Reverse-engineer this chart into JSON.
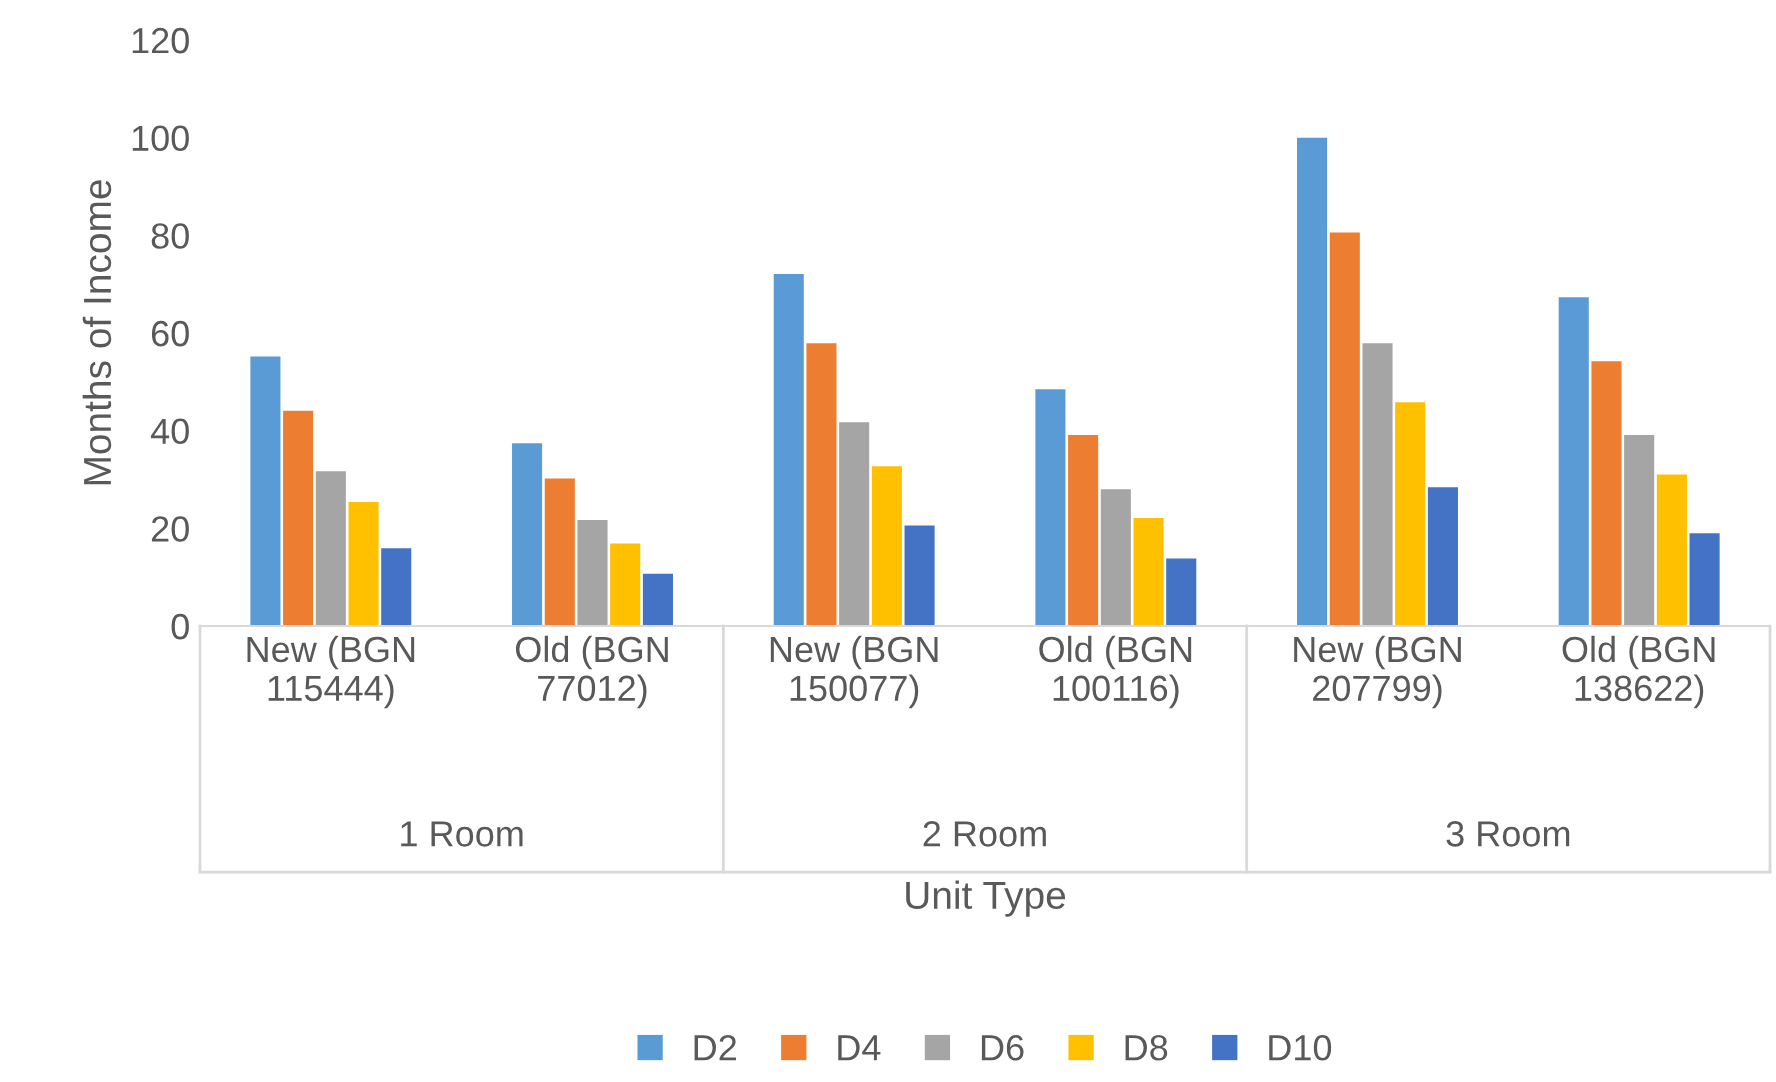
{
  "chart_data": {
    "type": "bar",
    "xlabel": "Unit Type",
    "ylabel": "Months of Income",
    "categories": [
      "New (BGN 115444)",
      "Old (BGN 77012)",
      "New (BGN 150077)",
      "Old (BGN 100116)",
      "New (BGN 207799)",
      "Old (BGN 138622)"
    ],
    "annotations": [
      "1 Room",
      "2 Room",
      "3 Room"
    ],
    "series": [
      {
        "name": "D2",
        "color": "#5b9bd5",
        "values": [
          55.2,
          37.4,
          72.1,
          48.5,
          100,
          67.3
        ]
      },
      {
        "name": "D4",
        "color": "#ed7d31",
        "values": [
          44.1,
          30.2,
          57.9,
          39.1,
          80.6,
          54.2
        ]
      },
      {
        "name": "D6",
        "color": "#a5a5a5",
        "values": [
          31.7,
          21.7,
          41.7,
          28.0,
          57.9,
          39.1
        ]
      },
      {
        "name": "D8",
        "color": "#ffc000",
        "values": [
          25.4,
          16.9,
          32.7,
          22.1,
          45.8,
          31.0
        ]
      },
      {
        "name": "D10",
        "color": "#4472c4",
        "values": [
          15.9,
          10.7,
          20.6,
          13.8,
          28.4,
          19.0
        ]
      }
    ],
    "ylim": [
      0,
      120
    ],
    "yticks": [
      0,
      20,
      40,
      60,
      80,
      100,
      120
    ],
    "grid": false,
    "legend": "bottom"
  }
}
